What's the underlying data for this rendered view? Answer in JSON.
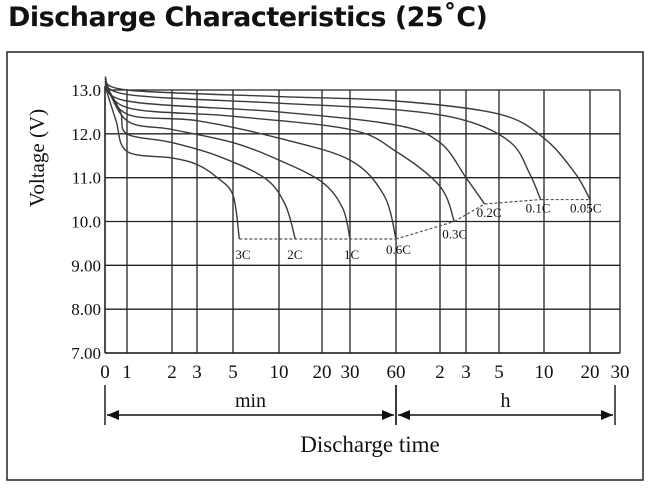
{
  "title": "Discharge Characteristics (25˚C)",
  "chart_data": {
    "type": "line",
    "title": "Discharge Characteristics (25˚C)",
    "ylabel": "Voltage (V)",
    "xlabel": "Discharge time",
    "ylim": [
      7.0,
      13.5
    ],
    "grid": true,
    "y_ticks": [
      "13.0",
      "12.0",
      "11.0",
      "10.0",
      "9.00",
      "8.00",
      "7.00"
    ],
    "x_ticks": [
      "0",
      "1",
      "2",
      "3",
      "5",
      "10",
      "20",
      "30",
      "60",
      "2",
      "3",
      "5",
      "10",
      "20",
      "30"
    ],
    "x_units": [
      "min",
      "h"
    ],
    "series": [
      {
        "name": "3C",
        "points": [
          [
            0,
            13.1
          ],
          [
            0.5,
            12.3
          ],
          [
            1,
            11.6
          ],
          [
            2,
            11.45
          ],
          [
            3,
            11.3
          ],
          [
            4,
            11.0
          ],
          [
            5,
            10.6
          ],
          [
            5.5,
            9.6
          ]
        ]
      },
      {
        "name": "2C",
        "points": [
          [
            0,
            13.15
          ],
          [
            0.7,
            12.5
          ],
          [
            1,
            12.0
          ],
          [
            2,
            11.8
          ],
          [
            4,
            11.5
          ],
          [
            8,
            11.0
          ],
          [
            11,
            10.4
          ],
          [
            13,
            9.6
          ]
        ]
      },
      {
        "name": "1C",
        "points": [
          [
            0,
            13.2
          ],
          [
            1,
            12.3
          ],
          [
            2,
            12.1
          ],
          [
            5,
            11.8
          ],
          [
            10,
            11.4
          ],
          [
            20,
            10.9
          ],
          [
            27,
            10.3
          ],
          [
            30,
            9.6
          ]
        ]
      },
      {
        "name": "0.6C",
        "points": [
          [
            0,
            13.2
          ],
          [
            1,
            12.45
          ],
          [
            3,
            12.3
          ],
          [
            10,
            11.9
          ],
          [
            30,
            11.4
          ],
          [
            50,
            10.6
          ],
          [
            60,
            9.6
          ]
        ]
      },
      {
        "name": "0.3C",
        "points": [
          [
            0,
            13.25
          ],
          [
            1,
            12.6
          ],
          [
            5,
            12.4
          ],
          [
            30,
            12.1
          ],
          [
            60,
            11.6
          ],
          [
            120,
            10.8
          ],
          [
            150,
            10.0
          ]
        ]
      },
      {
        "name": "0.2C",
        "points": [
          [
            0,
            13.25
          ],
          [
            1,
            12.75
          ],
          [
            10,
            12.5
          ],
          [
            60,
            12.2
          ],
          [
            120,
            11.8
          ],
          [
            180,
            11.0
          ],
          [
            240,
            10.4
          ]
        ]
      },
      {
        "name": "0.1C",
        "points": [
          [
            0,
            13.3
          ],
          [
            1,
            12.9
          ],
          [
            10,
            12.7
          ],
          [
            60,
            12.55
          ],
          [
            180,
            12.3
          ],
          [
            360,
            11.8
          ],
          [
            480,
            11.1
          ],
          [
            570,
            10.5
          ]
        ]
      },
      {
        "name": "0.05C",
        "points": [
          [
            0,
            13.3
          ],
          [
            1,
            13.0
          ],
          [
            10,
            12.85
          ],
          [
            60,
            12.75
          ],
          [
            300,
            12.45
          ],
          [
            600,
            11.9
          ],
          [
            960,
            11.1
          ],
          [
            1200,
            10.5
          ]
        ]
      }
    ],
    "cutoff_levels": [
      {
        "applies_to": [
          "3C",
          "2C",
          "1C",
          "0.6C"
        ],
        "voltage": 9.6
      },
      {
        "applies_to": [
          "0.2C"
        ],
        "voltage": 10.4
      },
      {
        "applies_to": [
          "0.1C",
          "0.05C"
        ],
        "voltage": 10.5
      }
    ],
    "colors": {
      "grid": "#222222",
      "curve": "#3a3a3a",
      "cutoff": "#555555"
    }
  }
}
